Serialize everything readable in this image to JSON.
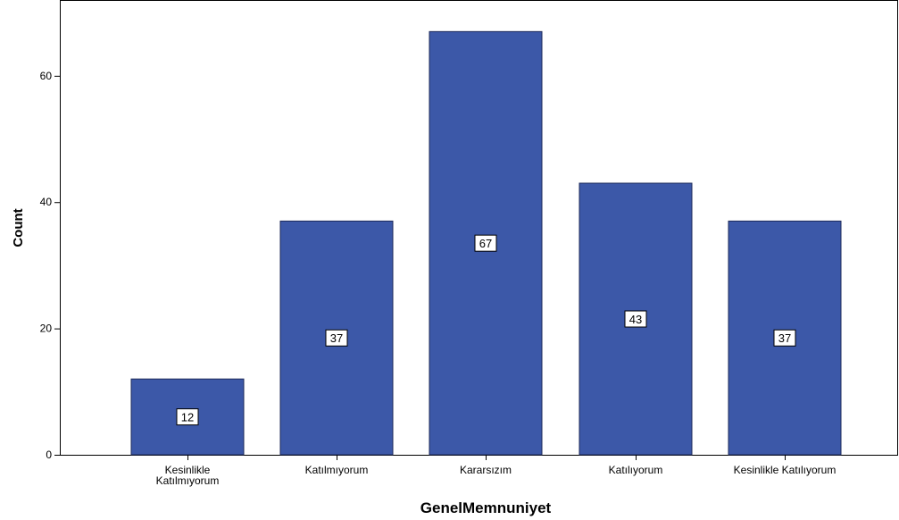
{
  "chart_data": {
    "type": "bar",
    "categories": [
      [
        "Kesinlikle",
        "Katılmıyorum"
      ],
      [
        "Katılmıyorum"
      ],
      [
        "Kararsızım"
      ],
      [
        "Katılıyorum"
      ],
      [
        "Kesinlikle Katılıyorum"
      ]
    ],
    "values": [
      12,
      37,
      67,
      43,
      37
    ],
    "data_labels": [
      "12",
      "37",
      "67",
      "43",
      "37"
    ],
    "xlabel": "GenelMemnuniyet",
    "ylabel": "Count",
    "ylim": [
      0,
      72
    ],
    "yticks": [
      0,
      20,
      40,
      60
    ],
    "ytick_labels": [
      "0",
      "20",
      "40",
      "60"
    ],
    "grid": false,
    "legend": "none",
    "bar_color": "#3c58a8",
    "bar_edge_color": "#1e2a5a",
    "axis_color": "#000000",
    "label_box_fill": "#ffffff"
  }
}
